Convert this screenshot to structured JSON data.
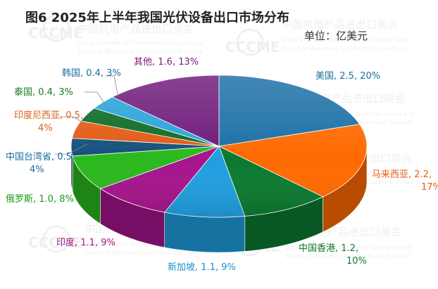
{
  "watermark": {
    "logo_text": "CCCME",
    "cn_name": "中国机电产品进出口商会",
    "en_line1": "China Chamber of Commerce for Import and",
    "en_line2": "Export of Machinery and Electronic Products"
  },
  "chart_data": {
    "type": "pie",
    "title": "图6   2025年上半年我国光伏设备出口市场分布",
    "unit_label": "单位：亿美元",
    "three_d": true,
    "legend": "none",
    "slices": [
      {
        "name": "美国",
        "value": 2.5,
        "percent": 20,
        "label": "美国, 2.5, 20%",
        "color": "#1b6fa6",
        "label_color": "#1a6fa0"
      },
      {
        "name": "马来西亚",
        "value": 2.2,
        "percent": 17,
        "label": "马来西亚, 2.2, 17%",
        "color": "#ff6a00",
        "label_color": "#e3640f"
      },
      {
        "name": "中国香港",
        "value": 1.2,
        "percent": 10,
        "label": "中国香港, 1.2, 10%",
        "color": "#0a7a2f",
        "label_color": "#0f7a2c"
      },
      {
        "name": "新加坡",
        "value": 1.1,
        "percent": 9,
        "label": "新加坡, 1.1, 9%",
        "color": "#1f9fe0",
        "label_color": "#1a8fd0"
      },
      {
        "name": "印度",
        "value": 1.1,
        "percent": 9,
        "label": "印度, 1.1, 9%",
        "color": "#a5148c",
        "label_color": "#9a1a86"
      },
      {
        "name": "俄罗斯",
        "value": 1.0,
        "percent": 8,
        "label": "俄罗斯, 1.0, 8%",
        "color": "#2bb81e",
        "label_color": "#1f9a14"
      },
      {
        "name": "中国台湾省",
        "value": 0.5,
        "percent": 4,
        "label": "中国台湾省, 0.5, 4%",
        "color": "#14507c",
        "label_color": "#1a6fa0"
      },
      {
        "name": "印度尼西亚",
        "value": 0.5,
        "percent": 4,
        "label": "印度尼西亚, 0.5, 4%",
        "color": "#e35a14",
        "label_color": "#d8621a"
      },
      {
        "name": "泰国",
        "value": 0.4,
        "percent": 3,
        "label": "泰国, 0.4, 3%",
        "color": "#0c6a24",
        "label_color": "#1a7a22"
      },
      {
        "name": "韩国",
        "value": 0.4,
        "percent": 3,
        "label": "韩国, 0.4, 3%",
        "color": "#28a3d8",
        "label_color": "#1a6fa0"
      },
      {
        "name": "其他",
        "value": 1.6,
        "percent": 13,
        "label": "其他, 1.6, 13%",
        "color": "#6e1a7a",
        "label_color": "#7a1a7a"
      }
    ]
  }
}
